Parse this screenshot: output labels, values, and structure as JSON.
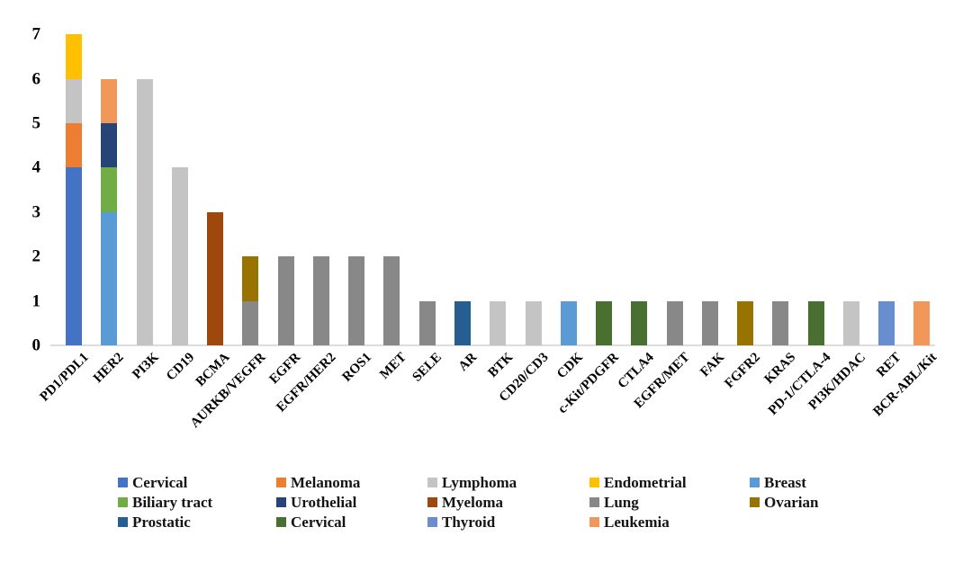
{
  "chart_data": {
    "type": "bar",
    "subtype": "stacked",
    "title": "",
    "xlabel": "",
    "ylabel": "",
    "ylim": [
      0,
      7
    ],
    "yticks": [
      0,
      1,
      2,
      3,
      4,
      5,
      6,
      7
    ],
    "grid": false,
    "legend_position": "bottom",
    "background": "#FFFFFF",
    "axis_line_color": "#DCDCDC",
    "text_color": "#000000",
    "series": [
      {
        "id": "cervical",
        "label": "Cervical",
        "color": "#4472C4"
      },
      {
        "id": "melanoma",
        "label": "Melanoma",
        "color": "#ED7D31"
      },
      {
        "id": "lymphoma",
        "label": "Lymphoma",
        "color": "#C4C4C4"
      },
      {
        "id": "endometrial",
        "label": "Endometrial",
        "color": "#FFC000"
      },
      {
        "id": "breast",
        "label": "Breast",
        "color": "#5B9BD5"
      },
      {
        "id": "biliary-tract",
        "label": "Biliary tract",
        "color": "#70AD47"
      },
      {
        "id": "urothelial",
        "label": "Urothelial",
        "color": "#264478"
      },
      {
        "id": "myeloma",
        "label": "Myeloma",
        "color": "#9E480E"
      },
      {
        "id": "lung",
        "label": "Lung",
        "color": "#888888"
      },
      {
        "id": "ovarian",
        "label": "Ovarian",
        "color": "#997300"
      },
      {
        "id": "prostatic",
        "label": "Prostatic",
        "color": "#255E91"
      },
      {
        "id": "cervical-2",
        "label": "Cervical",
        "color": "#4A7031"
      },
      {
        "id": "thyroid",
        "label": "Thyroid",
        "color": "#698ED0"
      },
      {
        "id": "leukemia",
        "label": "Leukemia",
        "color": "#F1975A"
      }
    ],
    "categories": [
      "PD1/PDL1",
      "HER2",
      "PI3K",
      "CD19",
      "BCMA",
      "AURKB/VEGFR",
      "EGFR",
      "EGFR/HER2",
      "ROS1",
      "MET",
      "SELE",
      "AR",
      "BTK",
      "CD20/CD3",
      "CDK",
      "c-Kit/PDGFR",
      "CTLA4",
      "EGFR/MET",
      "FAK",
      "FGFR2",
      "KRAS",
      "PD-1/CTLA-4",
      "PI3K/HDAC",
      "RET",
      "BCR-ABL/Kit"
    ],
    "bars": [
      {
        "category": "PD1/PDL1",
        "total": 7,
        "segments": [
          {
            "series": "cervical",
            "value": 4
          },
          {
            "series": "melanoma",
            "value": 1
          },
          {
            "series": "lymphoma",
            "value": 1
          },
          {
            "series": "endometrial",
            "value": 1
          }
        ]
      },
      {
        "category": "HER2",
        "total": 6,
        "segments": [
          {
            "series": "breast",
            "value": 3
          },
          {
            "series": "biliary-tract",
            "value": 1
          },
          {
            "series": "urothelial",
            "value": 1
          },
          {
            "series": "leukemia",
            "value": 1
          }
        ]
      },
      {
        "category": "PI3K",
        "total": 6,
        "segments": [
          {
            "series": "lymphoma",
            "value": 6
          }
        ]
      },
      {
        "category": "CD19",
        "total": 4,
        "segments": [
          {
            "series": "lymphoma",
            "value": 4
          }
        ]
      },
      {
        "category": "BCMA",
        "total": 3,
        "segments": [
          {
            "series": "myeloma",
            "value": 3
          }
        ]
      },
      {
        "category": "AURKB/VEGFR",
        "total": 2,
        "segments": [
          {
            "series": "lung",
            "value": 1
          },
          {
            "series": "ovarian",
            "value": 1
          }
        ]
      },
      {
        "category": "EGFR",
        "total": 2,
        "segments": [
          {
            "series": "lung",
            "value": 2
          }
        ]
      },
      {
        "category": "EGFR/HER2",
        "total": 2,
        "segments": [
          {
            "series": "lung",
            "value": 2
          }
        ]
      },
      {
        "category": "ROS1",
        "total": 2,
        "segments": [
          {
            "series": "lung",
            "value": 2
          }
        ]
      },
      {
        "category": "MET",
        "total": 2,
        "segments": [
          {
            "series": "lung",
            "value": 2
          }
        ]
      },
      {
        "category": "SELE",
        "total": 1,
        "segments": [
          {
            "series": "lung",
            "value": 1
          }
        ]
      },
      {
        "category": "AR",
        "total": 1,
        "segments": [
          {
            "series": "prostatic",
            "value": 1
          }
        ]
      },
      {
        "category": "BTK",
        "total": 1,
        "segments": [
          {
            "series": "lymphoma",
            "value": 1
          }
        ]
      },
      {
        "category": "CD20/CD3",
        "total": 1,
        "segments": [
          {
            "series": "lymphoma",
            "value": 1
          }
        ]
      },
      {
        "category": "CDK",
        "total": 1,
        "segments": [
          {
            "series": "breast",
            "value": 1
          }
        ]
      },
      {
        "category": "c-Kit/PDGFR",
        "total": 1,
        "segments": [
          {
            "series": "cervical-2",
            "value": 1
          }
        ]
      },
      {
        "category": "CTLA4",
        "total": 1,
        "segments": [
          {
            "series": "cervical-2",
            "value": 1
          }
        ]
      },
      {
        "category": "EGFR/MET",
        "total": 1,
        "segments": [
          {
            "series": "lung",
            "value": 1
          }
        ]
      },
      {
        "category": "FAK",
        "total": 1,
        "segments": [
          {
            "series": "lung",
            "value": 1
          }
        ]
      },
      {
        "category": "FGFR2",
        "total": 1,
        "segments": [
          {
            "series": "ovarian",
            "value": 1
          }
        ]
      },
      {
        "category": "KRAS",
        "total": 1,
        "segments": [
          {
            "series": "lung",
            "value": 1
          }
        ]
      },
      {
        "category": "PD-1/CTLA-4",
        "total": 1,
        "segments": [
          {
            "series": "cervical-2",
            "value": 1
          }
        ]
      },
      {
        "category": "PI3K/HDAC",
        "total": 1,
        "segments": [
          {
            "series": "lymphoma",
            "value": 1
          }
        ]
      },
      {
        "category": "RET",
        "total": 1,
        "segments": [
          {
            "series": "thyroid",
            "value": 1
          }
        ]
      },
      {
        "category": "BCR-ABL/Kit",
        "total": 1,
        "segments": [
          {
            "series": "leukemia",
            "value": 1
          }
        ]
      }
    ],
    "legend_rows": [
      [
        "cervical",
        "melanoma",
        "lymphoma",
        "endometrial",
        "breast"
      ],
      [
        "biliary-tract",
        "urothelial",
        "myeloma",
        "lung",
        "ovarian"
      ],
      [
        "prostatic",
        "cervical-2",
        "thyroid",
        "leukemia"
      ]
    ]
  }
}
